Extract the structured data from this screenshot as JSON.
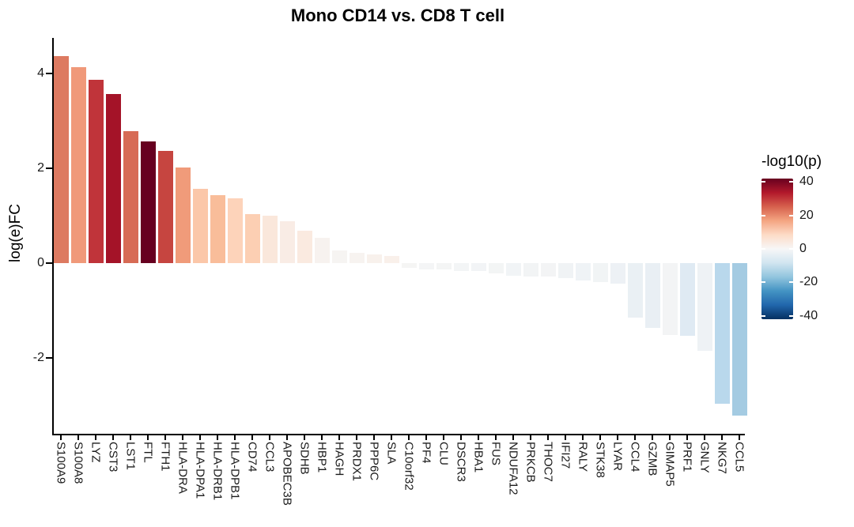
{
  "title": "Mono CD14 vs. CD8 T cell",
  "chart_data": {
    "type": "bar",
    "title": "Mono CD14 vs. CD8 T cell",
    "xlabel": "",
    "ylabel": "log(e)FC",
    "ylim": [
      -3.6,
      4.75
    ],
    "yticks": [
      4,
      2,
      0,
      -2
    ],
    "grid": false,
    "categories": [
      "S100A9",
      "S100A8",
      "LYZ",
      "CST3",
      "LST1",
      "FTL",
      "FTH1",
      "HLA-DRA",
      "HLA-DPA1",
      "HLA-DRB1",
      "HLA-DPB1",
      "CD74",
      "CCL3",
      "APOBEC3B",
      "SDHB",
      "HBP1",
      "HAGH",
      "PRDX1",
      "PPP6C",
      "SLA",
      "C10orf32",
      "PF4",
      "CLU",
      "DSCR3",
      "HBA1",
      "FUS",
      "NDUFA12",
      "PRKCB",
      "THOC7",
      "IFI27",
      "RALY",
      "STK38",
      "LYAR",
      "CCL4",
      "GZMB",
      "GIMAP5",
      "PRF1",
      "GNLY",
      "NKG7",
      "CCL5"
    ],
    "values": [
      4.36,
      4.14,
      3.86,
      3.57,
      2.79,
      2.57,
      2.37,
      2.01,
      1.56,
      1.43,
      1.36,
      1.03,
      1.0,
      0.89,
      0.68,
      0.53,
      0.27,
      0.21,
      0.18,
      0.15,
      -0.1,
      -0.13,
      -0.13,
      -0.16,
      -0.16,
      -0.22,
      -0.26,
      -0.28,
      -0.28,
      -0.32,
      -0.36,
      -0.4,
      -0.43,
      -1.15,
      -1.36,
      -1.52,
      -1.53,
      -1.85,
      -2.97,
      -3.22
    ],
    "bar_colors": [
      "#dd7a61",
      "#f0997a",
      "#c0343a",
      "#a41328",
      "#d76b55",
      "#670020",
      "#c64540",
      "#f09b7a",
      "#fbc7a9",
      "#f9bd9a",
      "#fdd3ba",
      "#fccfb3",
      "#fae7db",
      "#f9ece5",
      "#faeae0",
      "#f7f2ef",
      "#f6f4f2",
      "#f7f3f0",
      "#f8f1ec",
      "#f9f0ea",
      "#f5f5f4",
      "#f4f5f6",
      "#f4f5f5",
      "#f3f5f6",
      "#f2f4f6",
      "#f3f5f5",
      "#f1f4f6",
      "#f2f4f5",
      "#f3f4f5",
      "#f0f3f5",
      "#eff3f6",
      "#f1f4f5",
      "#edf1f5",
      "#eaf0f4",
      "#e9eff4",
      "#f3f4f5",
      "#dfeaf3",
      "#eef2f5",
      "#b9d8ec",
      "#a4cbe2"
    ],
    "legend": {
      "title": "-log10(p)",
      "position": "right",
      "type": "colorbar",
      "ticks": [
        40,
        20,
        0,
        -20,
        -40
      ],
      "limits": [
        -42,
        42
      ],
      "gradient_top_to_bottom": [
        "#67001f",
        "#b2182b",
        "#d6604d",
        "#f4a582",
        "#fddbc7",
        "#f7f7f7",
        "#d1e5f0",
        "#92c5de",
        "#4393c3",
        "#2166ac",
        "#053061"
      ]
    }
  }
}
